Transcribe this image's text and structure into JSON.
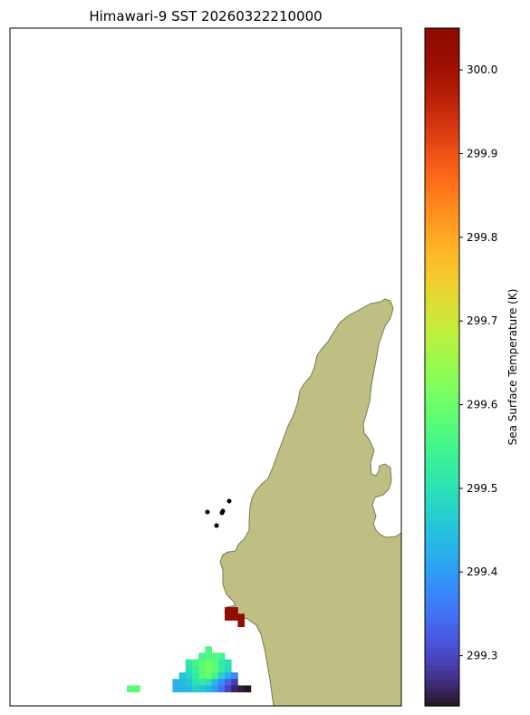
{
  "title": "Himawari-9 SST 20260322210000",
  "colorbar": {
    "label": "Sea Surface Temperature (K)",
    "vmin": 299.24,
    "vmax": 300.05,
    "ticks": [
      {
        "value": 299.3,
        "label": "299.3"
      },
      {
        "value": 299.4,
        "label": "299.4"
      },
      {
        "value": 299.5,
        "label": "299.5"
      },
      {
        "value": 299.6,
        "label": "299.6"
      },
      {
        "value": 299.7,
        "label": "299.7"
      },
      {
        "value": 299.8,
        "label": "299.8"
      },
      {
        "value": 299.9,
        "label": "299.9"
      },
      {
        "value": 300.0,
        "label": "300.0"
      }
    ],
    "colormap": "turbo"
  },
  "map": {
    "land_color": "#bfbf84",
    "coast_color": "#7a7a55",
    "ocean_color": "#ffffff",
    "point_markers": 5,
    "sst_cells": [
      {
        "col": 0,
        "row": 0,
        "value": 300.05
      },
      {
        "col": 1,
        "row": 0,
        "value": 300.05
      },
      {
        "col": 0,
        "row": 1,
        "value": 300.05
      },
      {
        "col": 1,
        "row": 1,
        "value": 300.04
      },
      {
        "col": 2,
        "row": 1,
        "value": 300.03
      },
      {
        "col": 2,
        "row": 2,
        "value": 300.03
      },
      {
        "col": -3,
        "row": 6,
        "value": 299.56
      },
      {
        "col": -4,
        "row": 7,
        "value": 299.55
      },
      {
        "col": -3,
        "row": 7,
        "value": 299.56
      },
      {
        "col": -2,
        "row": 7,
        "value": 299.57
      },
      {
        "col": -1,
        "row": 7,
        "value": 299.55
      },
      {
        "col": -6,
        "row": 8,
        "value": 299.52
      },
      {
        "col": -5,
        "row": 8,
        "value": 299.55
      },
      {
        "col": -4,
        "row": 8,
        "value": 299.58
      },
      {
        "col": -3,
        "row": 8,
        "value": 299.6
      },
      {
        "col": -2,
        "row": 8,
        "value": 299.58
      },
      {
        "col": -1,
        "row": 8,
        "value": 299.52
      },
      {
        "col": 0,
        "row": 8,
        "value": 299.5
      },
      {
        "col": -6,
        "row": 9,
        "value": 299.5
      },
      {
        "col": -5,
        "row": 9,
        "value": 299.53
      },
      {
        "col": -4,
        "row": 9,
        "value": 299.58
      },
      {
        "col": -3,
        "row": 9,
        "value": 299.61
      },
      {
        "col": -2,
        "row": 9,
        "value": 299.58
      },
      {
        "col": -1,
        "row": 9,
        "value": 299.53
      },
      {
        "col": 0,
        "row": 9,
        "value": 299.49
      },
      {
        "col": -7,
        "row": 10,
        "value": 299.45
      },
      {
        "col": -6,
        "row": 10,
        "value": 299.48
      },
      {
        "col": -5,
        "row": 10,
        "value": 299.52
      },
      {
        "col": -4,
        "row": 10,
        "value": 299.57
      },
      {
        "col": -3,
        "row": 10,
        "value": 299.6
      },
      {
        "col": -2,
        "row": 10,
        "value": 299.55
      },
      {
        "col": -1,
        "row": 10,
        "value": 299.47
      },
      {
        "col": 0,
        "row": 10,
        "value": 299.42
      },
      {
        "col": 1,
        "row": 10,
        "value": 299.38
      },
      {
        "col": -8,
        "row": 11,
        "value": 299.43
      },
      {
        "col": -7,
        "row": 11,
        "value": 299.44
      },
      {
        "col": -6,
        "row": 11,
        "value": 299.46
      },
      {
        "col": -5,
        "row": 11,
        "value": 299.5
      },
      {
        "col": -4,
        "row": 11,
        "value": 299.52
      },
      {
        "col": -3,
        "row": 11,
        "value": 299.5
      },
      {
        "col": -2,
        "row": 11,
        "value": 299.43
      },
      {
        "col": -1,
        "row": 11,
        "value": 299.38
      },
      {
        "col": 0,
        "row": 11,
        "value": 299.33
      },
      {
        "col": 1,
        "row": 11,
        "value": 299.29
      },
      {
        "col": -8,
        "row": 12,
        "value": 299.43
      },
      {
        "col": -7,
        "row": 12,
        "value": 299.43
      },
      {
        "col": -6,
        "row": 12,
        "value": 299.44
      },
      {
        "col": -5,
        "row": 12,
        "value": 299.47
      },
      {
        "col": -4,
        "row": 12,
        "value": 299.46
      },
      {
        "col": -3,
        "row": 12,
        "value": 299.43
      },
      {
        "col": -2,
        "row": 12,
        "value": 299.4
      },
      {
        "col": -1,
        "row": 12,
        "value": 299.35
      },
      {
        "col": 0,
        "row": 12,
        "value": 299.3
      },
      {
        "col": 1,
        "row": 12,
        "value": 299.26
      },
      {
        "col": 2,
        "row": 12,
        "value": 299.25
      },
      {
        "col": 3,
        "row": 12,
        "value": 299.24
      },
      {
        "col": -15,
        "row": 12,
        "value": 299.58
      },
      {
        "col": -14,
        "row": 12,
        "value": 299.58
      }
    ]
  }
}
